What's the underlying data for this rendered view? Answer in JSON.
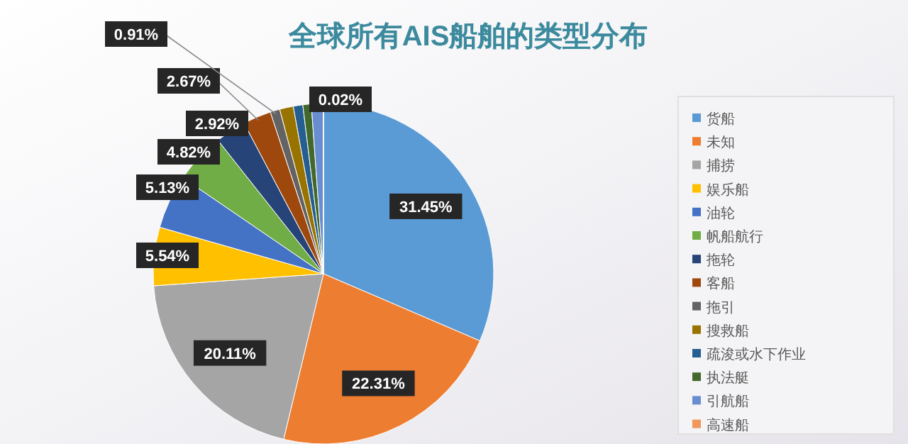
{
  "chart_data": {
    "type": "pie",
    "title": "全球所有AIS船舶的类型分布",
    "categories": [
      "货船",
      "未知",
      "捕捞",
      "娱乐船",
      "油轮",
      "帆船航行",
      "拖轮",
      "客船",
      "拖引",
      "搜救船",
      "疏浚或水下作业",
      "执法艇",
      "引航船",
      "高速船"
    ],
    "values": [
      31.45,
      22.31,
      20.11,
      5.54,
      5.13,
      4.82,
      2.92,
      2.67,
      0.91,
      1.3,
      0.9,
      0.8,
      1.12,
      0.02
    ],
    "value_labels": [
      "31.45%",
      "22.31%",
      "20.11%",
      "5.54%",
      "5.13%",
      "4.82%",
      "2.92%",
      "2.67%",
      "0.91%",
      null,
      null,
      null,
      null,
      "0.02%"
    ],
    "colors": [
      "#5b9bd5",
      "#ed7d31",
      "#a5a5a5",
      "#ffc000",
      "#4472c4",
      "#70ad47",
      "#264478",
      "#9e480e",
      "#636363",
      "#997300",
      "#255e91",
      "#43682b",
      "#698ed0",
      "#f1975a"
    ],
    "legend": "right"
  }
}
